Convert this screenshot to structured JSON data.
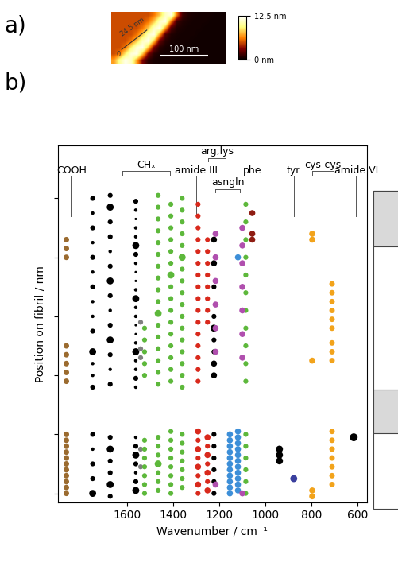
{
  "panel_labels": [
    "a)",
    "b)"
  ],
  "chart_data": [
    {
      "type": "heatmap",
      "xlim": [
        0,
        240
      ],
      "ylim": [
        0,
        80
      ],
      "tick_labels": false,
      "cells": [
        [
          5,
          5,
          5,
          5,
          5,
          5,
          5,
          6,
          8,
          11,
          12,
          6,
          1.5,
          0.8,
          0.6,
          0.5,
          0.5,
          0.5,
          0.4,
          0.4
        ],
        [
          5,
          5,
          5,
          5,
          5,
          5,
          6,
          8,
          11,
          12,
          6,
          1.5,
          0.8,
          0.6,
          0.5,
          0.5,
          0.5,
          0.4,
          0.4,
          0.4
        ],
        [
          5,
          5,
          5,
          5,
          5,
          6,
          8,
          11,
          12,
          7,
          2,
          0.8,
          0.6,
          0.5,
          0.5,
          0.5,
          0.4,
          0.4,
          0.4,
          0.4
        ],
        [
          5,
          5,
          5,
          5,
          6,
          8,
          11,
          12,
          7,
          2,
          0.8,
          0.6,
          0.5,
          0.5,
          0.5,
          0.4,
          0.4,
          0.4,
          0.4,
          0.4
        ],
        [
          5,
          5,
          5,
          6,
          8,
          11,
          12,
          8,
          2.5,
          1,
          0.6,
          0.5,
          0.5,
          0.5,
          0.4,
          0.4,
          0.4,
          0.4,
          0.4,
          0.4
        ],
        [
          5,
          5,
          6,
          9,
          11.5,
          12,
          8,
          3,
          1,
          0.6,
          0.5,
          0.5,
          0.5,
          0.4,
          0.4,
          0.4,
          0.4,
          0.4,
          0.4,
          0.4
        ],
        [
          5,
          6,
          9,
          11.5,
          12,
          8,
          3,
          1,
          0.6,
          0.5,
          0.5,
          0.5,
          0.4,
          0.4,
          0.4,
          0.4,
          0.4,
          0.4,
          0.4,
          0.4
        ],
        [
          7,
          10,
          12,
          11,
          7,
          3,
          1,
          0.6,
          0.5,
          0.5,
          0.5,
          0.4,
          0.4,
          0.4,
          0.4,
          0.4,
          0.4,
          0.4,
          0.4,
          0.4
        ]
      ],
      "colorbar": {
        "range": [
          0,
          12.5
        ],
        "ticks": [
          {
            "value": 0,
            "label": "0 nm"
          },
          {
            "value": 12.5,
            "label": "12.5 nm"
          }
        ]
      },
      "scale_bar": {
        "start": 104,
        "y": 12,
        "length": 100,
        "label": "100 nm"
      },
      "profile": {
        "x": [
          22,
          75
        ],
        "y": [
          22,
          52
        ],
        "start_label": "0",
        "label": "24.5 nm"
      }
    },
    {
      "type": "scatter",
      "x_label": "Wavenumber / cm⁻¹",
      "y_label": "Position on fibril / nm",
      "xlim": [
        1900,
        560
      ],
      "xticks": [
        1600,
        1400,
        1200,
        1000,
        800,
        600
      ],
      "ylim": [
        -3,
        118
      ],
      "yticks": [
        0,
        20,
        40,
        60,
        80,
        100
      ],
      "tick_labels": "x",
      "bands": [
        {
          "label": "COOH",
          "x": [
            1840
          ]
        },
        {
          "label": "CHₓ",
          "x": [
            1621,
            1413
          ]
        },
        {
          "label": "amide III",
          "x": [
            1299
          ]
        },
        {
          "label": "arg,lys",
          "x": [
            1247,
            1171
          ]
        },
        {
          "label": "asngln",
          "x": [
            1216,
            1110
          ]
        },
        {
          "label": "phe",
          "x": [
            1057
          ]
        },
        {
          "label": "tyr",
          "x": [
            877
          ]
        },
        {
          "label": "cys-cys",
          "x": [
            797,
            704
          ]
        },
        {
          "label": "amide VI",
          "x": [
            607
          ]
        }
      ],
      "series": [
        {
          "color": "#9b6b2f",
          "x": 1863,
          "y": [
            0,
            2,
            4,
            6,
            8,
            10,
            12,
            14,
            16,
            18,
            20,
            38,
            41,
            44,
            47,
            50,
            80,
            83,
            86
          ],
          "sizes": [
            25,
            25,
            25,
            25,
            25,
            25,
            25,
            25,
            25,
            25,
            25,
            25,
            25,
            25,
            25,
            25,
            25,
            25,
            25
          ]
        },
        {
          "color": "#000000",
          "x": 1749,
          "y": [
            0,
            5,
            10,
            15,
            20,
            36,
            40,
            44,
            48,
            55,
            60,
            65,
            70,
            75,
            80,
            85,
            90,
            95,
            100
          ],
          "sizes": [
            40,
            20,
            20,
            10,
            20,
            20,
            10,
            10,
            40,
            20,
            10,
            10,
            20,
            10,
            20,
            10,
            20,
            10,
            20
          ]
        },
        {
          "color": "#000000",
          "x": 1673,
          "y": [
            -1,
            3,
            7,
            11,
            15,
            19,
            37,
            42,
            47,
            52,
            57,
            62,
            67,
            72,
            77,
            82,
            87,
            92,
            97,
            101
          ],
          "sizes": [
            20,
            40,
            20,
            20,
            40,
            20,
            20,
            10,
            20,
            40,
            20,
            10,
            20,
            40,
            20,
            10,
            20,
            20,
            40,
            20
          ]
        },
        {
          "color": "#000000",
          "x": 1562,
          "y": [
            1,
            4,
            7,
            10,
            13,
            16,
            19,
            36,
            39,
            42,
            45,
            48,
            51,
            54,
            57,
            60,
            63,
            66,
            69,
            72,
            75,
            78,
            81,
            84,
            87,
            90,
            93,
            96,
            99
          ],
          "sizes": [
            40,
            20,
            10,
            20,
            40,
            20,
            10,
            10,
            20,
            10,
            10,
            40,
            10,
            5,
            5,
            10,
            10,
            40,
            10,
            5,
            5,
            10,
            20,
            40,
            10,
            10,
            5,
            10,
            20
          ]
        },
        {
          "color": "#7f7f7f",
          "x": 1541,
          "y": [
            9,
            15,
            46,
            49,
            58
          ],
          "sizes": [
            20,
            20,
            20,
            20,
            20
          ]
        },
        {
          "color": "#5db83b",
          "x": 1524,
          "y": [
            0,
            3,
            6,
            9,
            12,
            15,
            18,
            40,
            44,
            48,
            52,
            56
          ],
          "sizes": [
            20,
            20,
            20,
            20,
            20,
            20,
            20,
            20,
            20,
            20,
            20,
            20
          ]
        },
        {
          "color": "#5db83b",
          "x": 1465,
          "y": [
            1,
            4,
            7,
            10,
            13,
            16,
            19,
            37,
            41,
            45,
            49,
            53,
            57,
            61,
            65,
            69,
            73,
            77,
            81,
            85,
            89,
            93,
            97,
            101
          ],
          "sizes": [
            20,
            20,
            20,
            40,
            20,
            20,
            20,
            20,
            20,
            20,
            20,
            20,
            20,
            40,
            20,
            20,
            20,
            20,
            20,
            20,
            20,
            20,
            20,
            20
          ]
        },
        {
          "color": "#5db83b",
          "x": 1410,
          "y": [
            0,
            3,
            6,
            9,
            12,
            15,
            18,
            21,
            38,
            42,
            46,
            50,
            54,
            58,
            62,
            66,
            70,
            74,
            78,
            82,
            86,
            90,
            94,
            98
          ],
          "sizes": [
            20,
            20,
            20,
            20,
            20,
            20,
            20,
            20,
            20,
            20,
            20,
            20,
            20,
            20,
            20,
            20,
            20,
            40,
            20,
            20,
            20,
            20,
            20,
            20
          ]
        },
        {
          "color": "#5db83b",
          "x": 1361,
          "y": [
            2,
            5,
            8,
            11,
            14,
            17,
            20,
            36,
            40,
            44,
            48,
            52,
            56,
            60,
            64,
            68,
            72,
            76,
            80,
            84,
            88,
            92,
            96,
            100
          ],
          "sizes": [
            20,
            20,
            20,
            20,
            20,
            20,
            20,
            20,
            20,
            20,
            20,
            20,
            20,
            20,
            20,
            20,
            20,
            20,
            40,
            20,
            20,
            20,
            20,
            20
          ]
        },
        {
          "color": "#d9291c",
          "x": 1292,
          "y": [
            0,
            3,
            6,
            9,
            12,
            15,
            18,
            21,
            38,
            42,
            46,
            50,
            54,
            58,
            62,
            66,
            70,
            74,
            78,
            82,
            86,
            90,
            94,
            98
          ],
          "sizes": [
            20,
            30,
            20,
            30,
            20,
            30,
            20,
            30,
            20,
            20,
            20,
            20,
            20,
            20,
            20,
            20,
            20,
            20,
            20,
            20,
            20,
            20,
            20,
            20
          ]
        },
        {
          "color": "#d9291c",
          "x": 1251,
          "y": [
            1,
            4,
            7,
            10,
            13,
            16,
            19,
            58,
            62,
            66,
            70,
            74,
            78,
            82,
            86
          ],
          "sizes": [
            30,
            20,
            30,
            20,
            30,
            20,
            30,
            20,
            20,
            20,
            20,
            20,
            20,
            20,
            20
          ]
        },
        {
          "color": "#000000",
          "x": 1223,
          "y": [
            0,
            4,
            8,
            12,
            16,
            20,
            40,
            44,
            48,
            52,
            56,
            60,
            70,
            78,
            86
          ],
          "sizes": [
            20,
            20,
            20,
            20,
            20,
            20,
            30,
            30,
            20,
            20,
            40,
            20,
            20,
            30,
            30
          ]
        },
        {
          "color": "#b04fae",
          "x": 1216,
          "y": [
            3,
            48,
            56,
            64,
            72,
            80,
            88
          ],
          "sizes": [
            30,
            30,
            30,
            30,
            30,
            30,
            30
          ]
        },
        {
          "color": "#3d8fd8",
          "x": 1154,
          "y": [
            0,
            2,
            4,
            6,
            8,
            10,
            12,
            14,
            16,
            18,
            20
          ],
          "sizes": [
            30,
            30,
            30,
            30,
            30,
            30,
            30,
            30,
            30,
            30,
            30
          ]
        },
        {
          "color": "#3d8fd8",
          "x": 1119,
          "y": [
            1,
            3,
            5,
            7,
            9,
            11,
            13,
            15,
            17,
            19,
            21,
            80
          ],
          "sizes": [
            30,
            30,
            30,
            30,
            30,
            30,
            30,
            30,
            30,
            30,
            30,
            30
          ]
        },
        {
          "color": "#5db83b",
          "x": 1085,
          "y": [
            0,
            4,
            8,
            12,
            16,
            20,
            38,
            44,
            50,
            56,
            62,
            68,
            74,
            80,
            86,
            92,
            98
          ],
          "sizes": [
            20,
            20,
            20,
            20,
            20,
            20,
            20,
            20,
            20,
            20,
            20,
            20,
            20,
            20,
            20,
            20,
            20
          ]
        },
        {
          "color": "#b04fae",
          "x": 1100,
          "y": [
            0,
            46,
            54,
            62,
            70,
            78,
            84,
            90
          ],
          "sizes": [
            30,
            30,
            30,
            30,
            30,
            30,
            30,
            30
          ]
        },
        {
          "color": "#8e1c12",
          "x": 1057,
          "y": [
            86,
            88,
            95
          ],
          "sizes": [
            30,
            30,
            30
          ]
        },
        {
          "color": "#000000",
          "x": 939,
          "y": [
            11,
            13,
            15
          ],
          "sizes": [
            40,
            40,
            40
          ]
        },
        {
          "color": "#3a3f9e",
          "x": 877,
          "y": [
            5
          ],
          "sizes": [
            40
          ]
        },
        {
          "color": "#f2a31b",
          "x": 797,
          "y": [
            -1,
            1,
            45,
            86,
            88
          ],
          "sizes": [
            30,
            30,
            30,
            30,
            30
          ]
        },
        {
          "color": "#f2a31b",
          "x": 711,
          "y": [
            3,
            6,
            9,
            12,
            15,
            18,
            21,
            45,
            48,
            51,
            56,
            59,
            62,
            65,
            68,
            71
          ],
          "sizes": [
            25,
            25,
            25,
            25,
            25,
            25,
            25,
            25,
            25,
            25,
            25,
            25,
            25,
            25,
            25,
            25
          ]
        },
        {
          "color": "#000000",
          "x": 617,
          "y": [
            19
          ],
          "sizes": [
            50
          ]
        }
      ]
    }
  ]
}
